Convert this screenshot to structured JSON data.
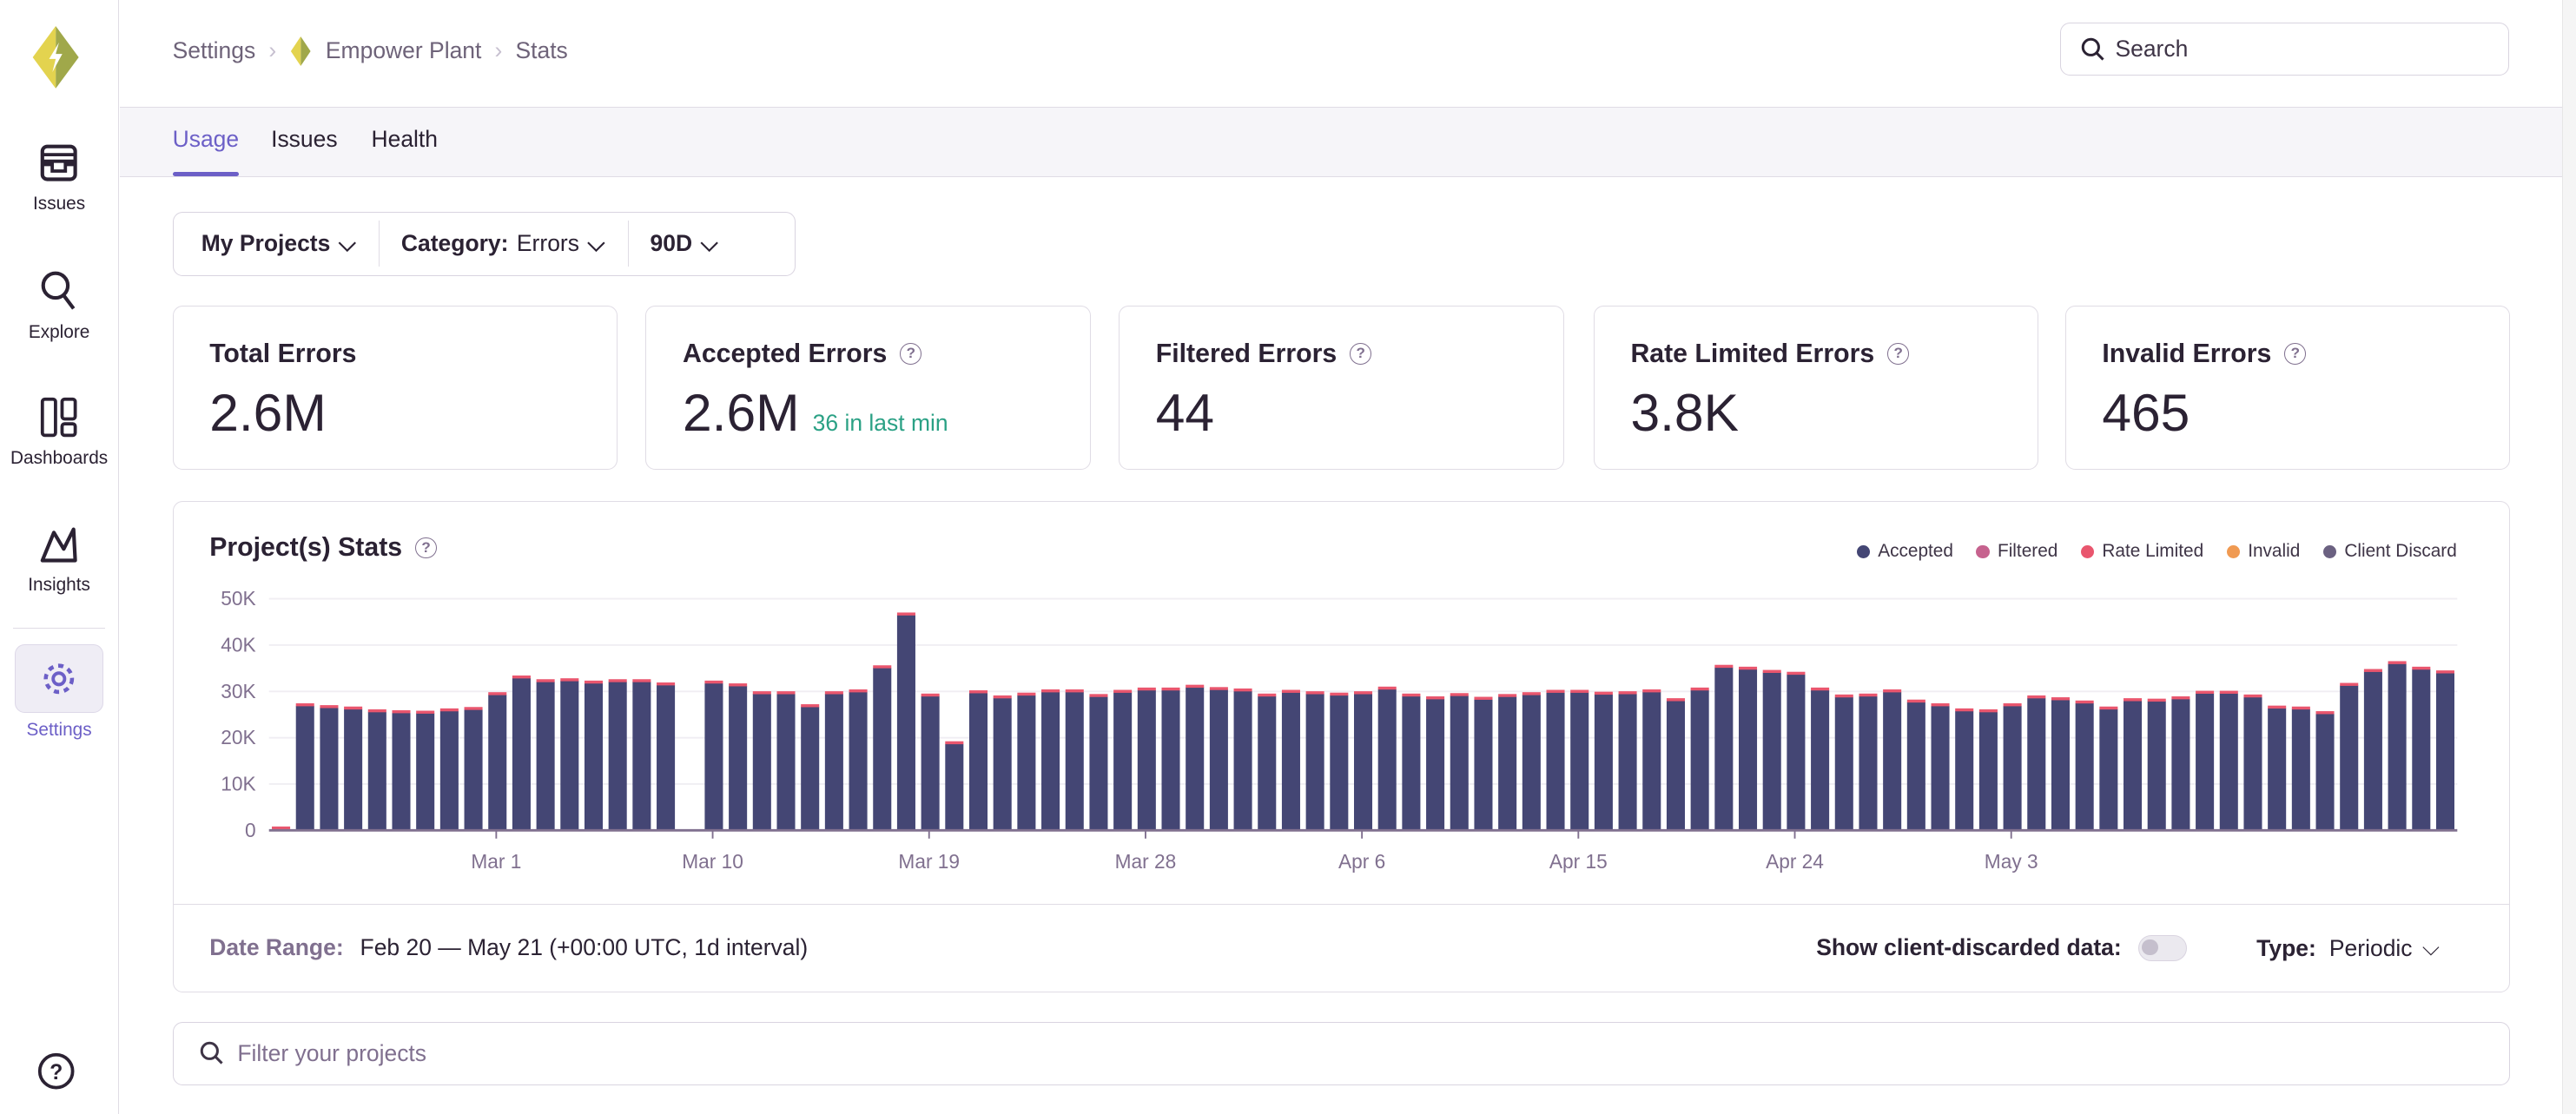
{
  "sidebar": {
    "items": [
      {
        "label": "Issues",
        "icon": "inbox-icon"
      },
      {
        "label": "Explore",
        "icon": "search-icon"
      },
      {
        "label": "Dashboards",
        "icon": "dashboard-icon"
      },
      {
        "label": "Insights",
        "icon": "insights-icon"
      },
      {
        "label": "Settings",
        "icon": "gear-icon",
        "active": true
      }
    ],
    "help_icon": "help-icon"
  },
  "breadcrumb": [
    "Settings",
    "Empower Plant",
    "Stats"
  ],
  "search": {
    "placeholder": "Search"
  },
  "tabs": [
    {
      "label": "Usage",
      "active": true
    },
    {
      "label": "Issues"
    },
    {
      "label": "Health"
    }
  ],
  "filters": {
    "projects": "My Projects",
    "category_label": "Category:",
    "category_value": "Errors",
    "period": "90D"
  },
  "stats": [
    {
      "title": "Total Errors",
      "value": "2.6M"
    },
    {
      "title": "Accepted Errors",
      "value": "2.6M",
      "sub": "36 in last min"
    },
    {
      "title": "Filtered Errors",
      "value": "44"
    },
    {
      "title": "Rate Limited Errors",
      "value": "3.8K"
    },
    {
      "title": "Invalid Errors",
      "value": "465"
    }
  ],
  "colors": {
    "accent": "#6c5fc7",
    "accepted": "#444674",
    "filtered": "#c6628e",
    "rate_limited": "#e9566e",
    "invalid": "#f09a52",
    "client_discard": "#6b6181",
    "positive": "#2ba185"
  },
  "chart_data": {
    "type": "bar",
    "title": "Project(s) Stats",
    "stacked": true,
    "legend": [
      "Accepted",
      "Filtered",
      "Rate Limited",
      "Invalid",
      "Client Discard"
    ],
    "legend_placement": "top-right",
    "start_date": "Feb 20",
    "x_tick_labels": [
      {
        "label": "Mar 1",
        "day_index": 10
      },
      {
        "label": "Mar 10",
        "day_index": 19
      },
      {
        "label": "Mar 19",
        "day_index": 28
      },
      {
        "label": "Mar 28",
        "day_index": 37
      },
      {
        "label": "Apr 6",
        "day_index": 46
      },
      {
        "label": "Apr 15",
        "day_index": 55
      },
      {
        "label": "Apr 24",
        "day_index": 64
      },
      {
        "label": "May 3",
        "day_index": 73
      }
    ],
    "y_ticks": [
      "0",
      "10K",
      "20K",
      "30K",
      "40K",
      "50K"
    ],
    "ylim": [
      0,
      50000
    ],
    "grid": true,
    "series": [
      {
        "name": "Accepted",
        "values": [
          300,
          26900,
          26500,
          26200,
          25600,
          25400,
          25300,
          25800,
          26100,
          29300,
          32900,
          32100,
          32300,
          31800,
          32100,
          32100,
          31400,
          0,
          31800,
          31200,
          29500,
          29500,
          26700,
          29500,
          29900,
          35100,
          46500,
          29000,
          18700,
          29700,
          28600,
          29200,
          29900,
          29900,
          28900,
          29800,
          30300,
          30300,
          30900,
          30400,
          30100,
          29000,
          29800,
          29500,
          29200,
          29500,
          30500,
          29000,
          28400,
          29100,
          28300,
          28900,
          29300,
          29800,
          29800,
          29400,
          29500,
          29900,
          28000,
          30300,
          35200,
          34800,
          34100,
          33700,
          30300,
          28800,
          29000,
          29900,
          27700,
          26900,
          25800,
          25600,
          26900,
          28600,
          28200,
          27500,
          26200,
          28000,
          27900,
          28400,
          29600,
          29600,
          28800,
          26400,
          26200,
          25200,
          31300,
          34300,
          36000,
          34800,
          34000
        ]
      }
    ]
  },
  "chart_footer": {
    "date_range_label": "Date Range:",
    "date_range_value": "Feb 20 — May 21 (+00:00 UTC, 1d interval)",
    "client_discard_label": "Show client-discarded data:",
    "client_discard_on": false,
    "type_label": "Type:",
    "type_value": "Periodic"
  },
  "project_filter": {
    "placeholder": "Filter your projects"
  }
}
